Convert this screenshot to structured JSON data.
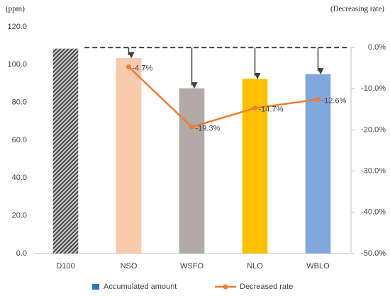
{
  "chart_data": {
    "type": "bar",
    "y_label": "(ppm)",
    "y2_label": "(Decreasing rate)",
    "categories": [
      "D100",
      "NSO",
      "WSFO",
      "NLO",
      "WBLO"
    ],
    "bar_colors": [
      "#4a4a4a",
      "#f8cbad",
      "#b1aaa6",
      "#ffc000",
      "#7fa7dc"
    ],
    "hatched": [
      true,
      false,
      false,
      false,
      false
    ],
    "series": [
      {
        "name": "Accumulated amount",
        "color": "#2e75c6",
        "values": [
          108.5,
          103.5,
          87.5,
          92.5,
          95.0
        ]
      },
      {
        "name": "Decreased rate",
        "color": "#ed7d31",
        "axis": "y2",
        "type": "line",
        "values": [
          null,
          -4.7,
          -19.3,
          -14.7,
          -12.6
        ],
        "value_labels": [
          null,
          "-4.7%",
          "-19.3%",
          "-14.7%",
          "-12.6%"
        ]
      }
    ],
    "ylim": [
      0,
      120
    ],
    "yticks": [
      {
        "value": 0,
        "label": "0.0"
      },
      {
        "value": 20,
        "label": "20.0"
      },
      {
        "value": 40,
        "label": "40.0"
      },
      {
        "value": 60,
        "label": "60.0"
      },
      {
        "value": 80,
        "label": "80.0"
      },
      {
        "value": 100,
        "label": "100.0"
      },
      {
        "value": 120,
        "label": "120.0"
      }
    ],
    "y2lim": [
      -50,
      5
    ],
    "y2ticks": [
      {
        "value": -50,
        "label": "-50.0%"
      },
      {
        "value": -40,
        "label": "-40.0%"
      },
      {
        "value": -30,
        "label": "-30.0%"
      },
      {
        "value": -20,
        "label": "-20.0%"
      },
      {
        "value": -10,
        "label": "-10.0%"
      },
      {
        "value": 0,
        "label": "0.0%"
      }
    ],
    "legend": "bottom"
  }
}
